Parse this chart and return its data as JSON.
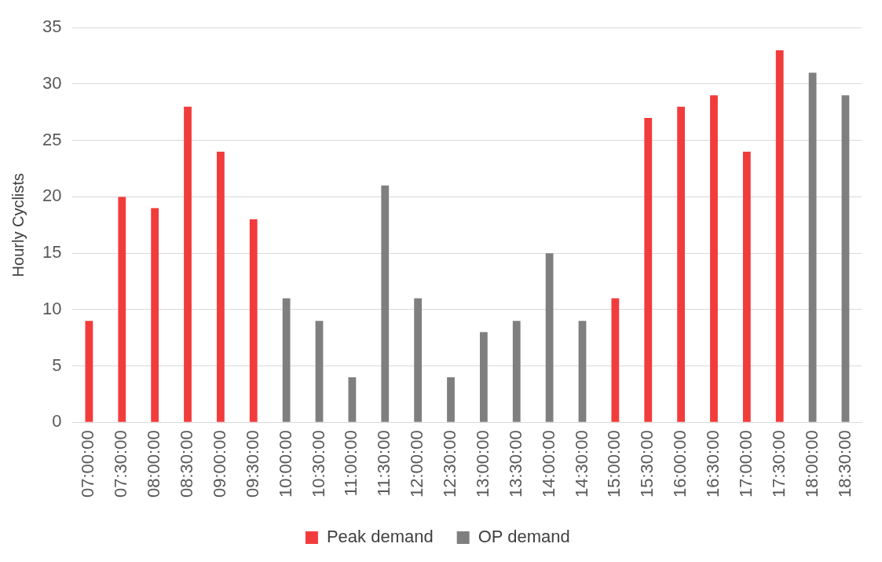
{
  "chart_data": {
    "type": "bar",
    "ylabel": "Hourly Cyclists",
    "stacked": true,
    "grid": "y",
    "legend": "bottom",
    "categories": [
      "07:00:00",
      "07:30:00",
      "08:00:00",
      "08:30:00",
      "09:00:00",
      "09:30:00",
      "10:00:00",
      "10:30:00",
      "11:00:00",
      "11:30:00",
      "12:00:00",
      "12:30:00",
      "13:00:00",
      "13:30:00",
      "14:00:00",
      "14:30:00",
      "15:00:00",
      "15:30:00",
      "16:00:00",
      "16:30:00",
      "17:00:00",
      "17:30:00",
      "18:00:00",
      "18:30:00"
    ],
    "series": [
      {
        "name": "Peak demand",
        "color": "#f23c3c",
        "values": [
          9,
          20,
          19,
          28,
          24,
          18,
          null,
          null,
          null,
          null,
          null,
          null,
          null,
          null,
          null,
          null,
          11,
          27,
          28,
          29,
          24,
          33,
          null,
          null
        ]
      },
      {
        "name": "OP demand",
        "color": "#7f7f7f",
        "values": [
          null,
          null,
          null,
          null,
          null,
          null,
          11,
          9,
          4,
          21,
          11,
          4,
          8,
          9,
          15,
          9,
          null,
          null,
          null,
          null,
          null,
          null,
          31,
          29
        ]
      }
    ],
    "ylim": [
      0,
      35
    ],
    "yticks": [
      0,
      5,
      10,
      15,
      20,
      25,
      30,
      35
    ]
  }
}
